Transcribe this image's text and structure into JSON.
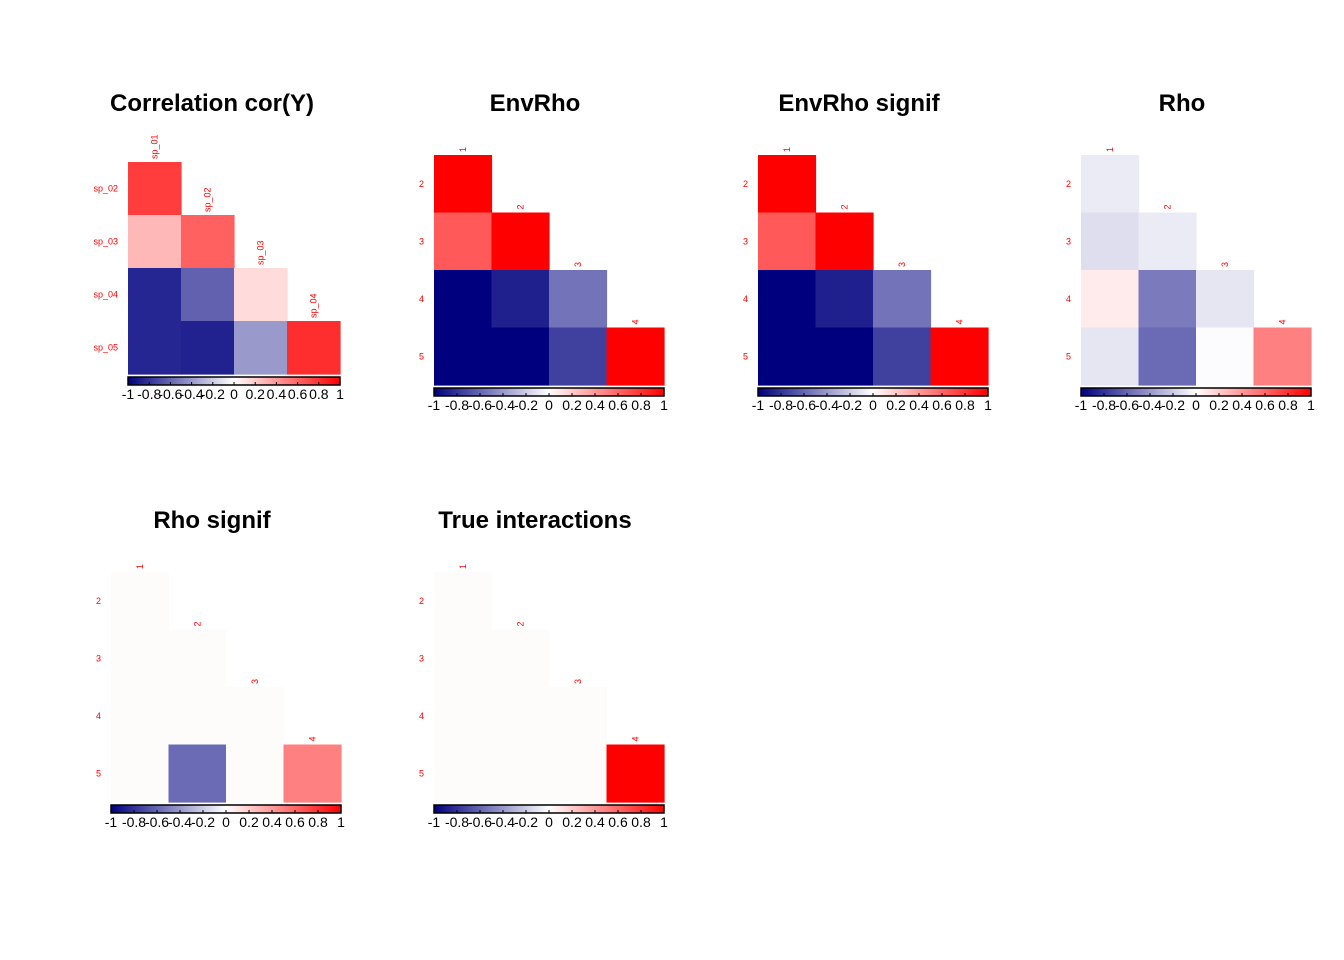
{
  "chart_data": [
    {
      "type": "heatmap",
      "title": "Correlation cor(Y)",
      "labels": [
        "sp_01",
        "sp_02",
        "sp_03",
        "sp_04",
        "sp_05"
      ],
      "matrix": [
        [
          0.76,
          null,
          null,
          null
        ],
        [
          0.28,
          0.62,
          null,
          null
        ],
        [
          -0.85,
          -0.62,
          0.14,
          null
        ],
        [
          -0.85,
          -0.87,
          -0.4,
          0.82
        ]
      ],
      "colorbar_ticks": [
        "-1",
        "-0.8",
        "-0.6",
        "-0.4",
        "-0.2",
        "0",
        "0.2",
        "0.4",
        "0.6",
        "0.8",
        "1"
      ],
      "colorbar_range": [
        -1,
        1
      ],
      "colorscale": [
        "#00007F",
        "#FFFFFF",
        "#FF0000"
      ]
    },
    {
      "type": "heatmap",
      "title": "EnvRho",
      "labels": [
        "1",
        "2",
        "3",
        "4",
        "5"
      ],
      "matrix": [
        [
          1.0,
          null,
          null,
          null
        ],
        [
          0.65,
          1.0,
          null,
          null
        ],
        [
          -1.0,
          -0.88,
          -0.55,
          null
        ],
        [
          -1.0,
          -1.0,
          -0.75,
          1.0
        ]
      ],
      "colorbar_ticks": [
        "-1",
        "-0.8",
        "-0.6",
        "-0.4",
        "-0.2",
        "0",
        "0.2",
        "0.4",
        "0.6",
        "0.8",
        "1"
      ],
      "colorbar_range": [
        -1,
        1
      ],
      "colorscale": [
        "#00007F",
        "#FFFFFF",
        "#FF0000"
      ]
    },
    {
      "type": "heatmap",
      "title": "EnvRho signif",
      "labels": [
        "1",
        "2",
        "3",
        "4",
        "5"
      ],
      "matrix": [
        [
          1.0,
          null,
          null,
          null
        ],
        [
          0.65,
          1.0,
          null,
          null
        ],
        [
          -1.0,
          -0.88,
          -0.55,
          null
        ],
        [
          -1.0,
          -1.0,
          -0.75,
          1.0
        ]
      ],
      "colorbar_ticks": [
        "-1",
        "-0.8",
        "-0.6",
        "-0.4",
        "-0.2",
        "0",
        "0.2",
        "0.4",
        "0.6",
        "0.8",
        "1"
      ],
      "colorbar_range": [
        -1,
        1
      ],
      "colorscale": [
        "#00007F",
        "#FFFFFF",
        "#FF0000"
      ]
    },
    {
      "type": "heatmap",
      "title": "Rho",
      "labels": [
        "1",
        "2",
        "3",
        "4",
        "5"
      ],
      "matrix": [
        [
          -0.08,
          null,
          null,
          null
        ],
        [
          -0.13,
          -0.08,
          null,
          null
        ],
        [
          0.08,
          -0.52,
          -0.1,
          null
        ],
        [
          -0.1,
          -0.58,
          -0.01,
          0.5
        ]
      ],
      "colorbar_ticks": [
        "-1",
        "-0.8",
        "-0.6",
        "-0.4",
        "-0.2",
        "0",
        "0.2",
        "0.4",
        "0.6",
        "0.8",
        "1"
      ],
      "colorbar_range": [
        -1,
        1
      ],
      "colorscale": [
        "#00007F",
        "#FFFFFF",
        "#FF0000"
      ]
    },
    {
      "type": "heatmap",
      "title": "Rho signif",
      "labels": [
        "1",
        "2",
        "3",
        "4",
        "5"
      ],
      "matrix": [
        [
          0,
          null,
          null,
          null
        ],
        [
          0,
          0,
          null,
          null
        ],
        [
          0,
          0,
          0,
          null
        ],
        [
          0,
          -0.58,
          0,
          0.5
        ]
      ],
      "colorbar_ticks": [
        "-1",
        "-0.8",
        "-0.6",
        "-0.4",
        "-0.2",
        "0",
        "0.2",
        "0.4",
        "0.6",
        "0.8",
        "1"
      ],
      "colorbar_range": [
        -1,
        1
      ],
      "colorscale": [
        "#00007F",
        "#FFFFFF",
        "#FF0000"
      ]
    },
    {
      "type": "heatmap",
      "title": "True interactions",
      "labels": [
        "1",
        "2",
        "3",
        "4",
        "5"
      ],
      "matrix": [
        [
          0,
          null,
          null,
          null
        ],
        [
          0,
          0,
          null,
          null
        ],
        [
          0,
          0,
          0,
          null
        ],
        [
          0,
          0,
          0,
          1.0
        ]
      ],
      "colorbar_ticks": [
        "-1",
        "-0.8",
        "-0.6",
        "-0.4",
        "-0.2",
        "0",
        "0.2",
        "0.4",
        "0.6",
        "0.8",
        "1"
      ],
      "colorbar_range": [
        -1,
        1
      ],
      "colorscale": [
        "#00007F",
        "#FFFFFF",
        "#FF0000"
      ]
    }
  ]
}
